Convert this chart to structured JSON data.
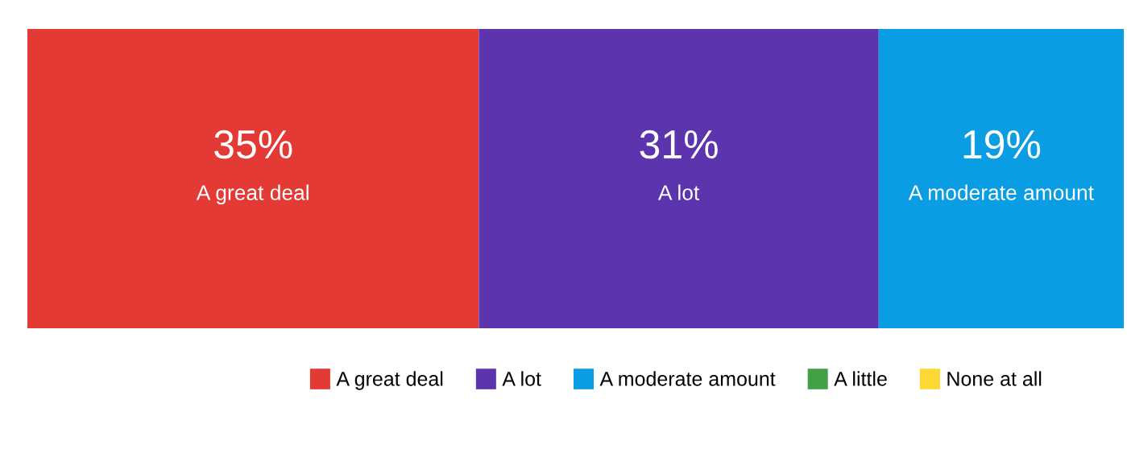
{
  "chart_data": {
    "type": "bar",
    "orientation": "horizontal",
    "stacked": true,
    "categories": [
      null
    ],
    "tick_labels": false,
    "legend": "bottom",
    "series": [
      {
        "name": "A great deal",
        "color": "#e33a35",
        "values": [
          35
        ],
        "value_labels": [
          "35%"
        ]
      },
      {
        "name": "A lot",
        "color": "#5c35ae",
        "values": [
          31
        ],
        "value_labels": [
          "31%"
        ]
      },
      {
        "name": "A moderate amount",
        "color": "#0a9de3",
        "values": [
          19
        ],
        "value_labels": [
          "19%"
        ]
      },
      {
        "name": "A little",
        "color": "#43a047",
        "values": [
          null
        ]
      },
      {
        "name": "None at all",
        "color": "#fdd835",
        "values": [
          null
        ]
      }
    ]
  }
}
